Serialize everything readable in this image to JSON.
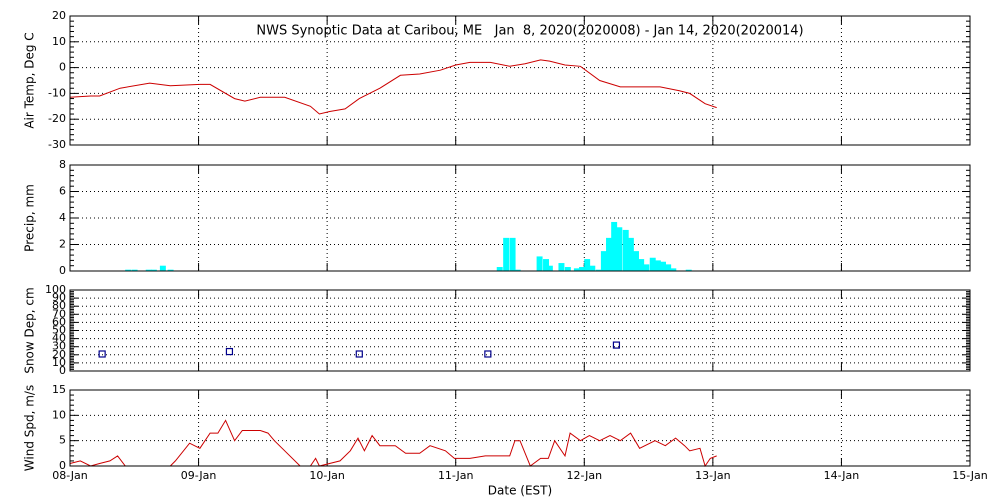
{
  "chart_data": [
    {
      "type": "line",
      "title": "NWS Synoptic Data at Caribou, ME   Jan  8, 2020(2020008) - Jan 14, 2020(2020014)",
      "ylabel": "Air Temp, Deg C",
      "color": "#cc0000",
      "x": [
        0,
        0.16,
        0.23,
        0.39,
        0.62,
        0.78,
        1.01,
        1.09,
        1.28,
        1.36,
        1.48,
        1.67,
        1.87,
        1.94,
        2.02,
        2.14,
        2.25,
        2.41,
        2.57,
        2.72,
        2.88,
        3.0,
        3.11,
        3.27,
        3.42,
        3.54,
        3.66,
        3.73,
        3.85,
        3.97,
        4.12,
        4.28,
        4.59,
        4.74,
        4.82,
        4.94,
        5.03
      ],
      "values": [
        -11.5,
        -11,
        -11,
        -8,
        -6,
        -7,
        -6.5,
        -6.5,
        -12,
        -13,
        -11.5,
        -11.5,
        -15,
        -18,
        -17,
        -16,
        -12,
        -8,
        -3,
        -2.5,
        -1,
        1,
        2,
        2,
        0.5,
        1.5,
        3,
        2.5,
        1,
        0.5,
        -5,
        -7.5,
        -7.5,
        -9,
        -10,
        -14,
        -15.5
      ],
      "xlim": [
        0,
        7
      ],
      "xticks": [
        0,
        1,
        2,
        3,
        4,
        5,
        6,
        7
      ],
      "ylim": [
        -30,
        20
      ],
      "yticks": [
        -30,
        -20,
        -10,
        0,
        10,
        20
      ],
      "grid": true
    },
    {
      "type": "bar",
      "ylabel": "Precip, mm",
      "color": "#00ffff",
      "x": [
        0.45,
        0.5,
        0.61,
        0.65,
        0.72,
        0.78,
        3.34,
        3.39,
        3.44,
        3.48,
        3.65,
        3.7,
        3.73,
        3.82,
        3.87,
        3.94,
        3.98,
        4.02,
        4.06,
        4.11,
        4.15,
        4.19,
        4.23,
        4.27,
        4.32,
        4.36,
        4.4,
        4.44,
        4.48,
        4.53,
        4.57,
        4.61,
        4.65,
        4.69,
        4.81
      ],
      "values": [
        0.1,
        0.1,
        0.1,
        0.1,
        0.4,
        0.1,
        0.3,
        2.5,
        2.5,
        0.1,
        1.1,
        0.9,
        0.4,
        0.6,
        0.3,
        0.2,
        0.3,
        0.9,
        0.4,
        0.1,
        1.5,
        2.5,
        3.7,
        3.3,
        3.1,
        2.5,
        1.5,
        0.9,
        0.5,
        1.0,
        0.8,
        0.7,
        0.5,
        0.2,
        0.1
      ],
      "xlim": [
        0,
        7
      ],
      "xticks": [
        0,
        1,
        2,
        3,
        4,
        5,
        6,
        7
      ],
      "ylim": [
        0,
        8
      ],
      "yticks": [
        0,
        2,
        4,
        6,
        8
      ],
      "grid": true
    },
    {
      "type": "scatter",
      "ylabel": "Snow Dep, cm",
      "color": "#00008b",
      "x": [
        0.25,
        1.24,
        2.25,
        3.25,
        4.25
      ],
      "values": [
        21,
        24,
        21,
        21,
        32
      ],
      "xlim": [
        0,
        7
      ],
      "xticks": [
        0,
        1,
        2,
        3,
        4,
        5,
        6,
        7
      ],
      "ylim": [
        0,
        100
      ],
      "yticks": [
        0,
        10,
        20,
        30,
        40,
        50,
        60,
        70,
        80,
        90,
        100
      ],
      "grid": true
    },
    {
      "type": "line",
      "ylabel": "Wind Spd, m/s",
      "xlabel": "Date (EST)",
      "color": "#cc0000",
      "x": [
        0,
        0.08,
        0.16,
        0.23,
        0.31,
        0.37,
        0.43,
        0.62,
        0.78,
        0.82,
        0.93,
        1.01,
        1.09,
        1.15,
        1.21,
        1.28,
        1.34,
        1.48,
        1.54,
        1.59,
        1.67,
        1.79,
        1.87,
        1.91,
        1.94,
        2.1,
        2.18,
        2.24,
        2.29,
        2.35,
        2.41,
        2.53,
        2.61,
        2.72,
        2.8,
        2.92,
        2.99,
        3.11,
        3.23,
        3.34,
        3.42,
        3.46,
        3.5,
        3.58,
        3.66,
        3.72,
        3.77,
        3.85,
        3.89,
        3.97,
        4.04,
        4.12,
        4.2,
        4.28,
        4.36,
        4.43,
        4.55,
        4.63,
        4.71,
        4.78,
        4.82,
        4.9,
        4.94,
        4.98,
        5.03
      ],
      "values": [
        0.5,
        1,
        0,
        0.5,
        1,
        2,
        0,
        0,
        0,
        1,
        4.5,
        3.5,
        6.5,
        6.5,
        9,
        5,
        7,
        7,
        6.5,
        5,
        3,
        0,
        0,
        1.5,
        0,
        1,
        3,
        5.5,
        3,
        6,
        4,
        4,
        2.5,
        2.5,
        4,
        3,
        1.5,
        1.5,
        2,
        2,
        2,
        5,
        5,
        0,
        1.5,
        1.5,
        5,
        2,
        6.5,
        5,
        6,
        5,
        6,
        5,
        6.5,
        3.5,
        5,
        4,
        5.5,
        4,
        3,
        3.5,
        0,
        1.5,
        2
      ],
      "xlim": [
        0,
        7
      ],
      "xticks": [
        {
          "value": 0,
          "label": "08-Jan"
        },
        {
          "value": 1,
          "label": "09-Jan"
        },
        {
          "value": 2,
          "label": "10-Jan"
        },
        {
          "value": 3,
          "label": "11-Jan"
        },
        {
          "value": 4,
          "label": "12-Jan"
        },
        {
          "value": 5,
          "label": "13-Jan"
        },
        {
          "value": 6,
          "label": "14-Jan"
        },
        {
          "value": 7,
          "label": "15-Jan"
        }
      ],
      "ylim": [
        0,
        15
      ],
      "yticks": [
        0,
        5,
        10,
        15
      ],
      "grid": true
    }
  ]
}
